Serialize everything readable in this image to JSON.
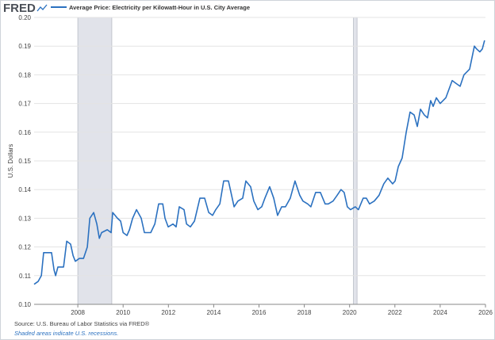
{
  "chart_data": {
    "type": "line",
    "logo": "FRED",
    "ylabel": "U.S. Dollars",
    "source": "Source: U.S. Bureau of Labor Statistics via FRED®",
    "note": "Shaded areas indicate U.S. recessions.",
    "xlim": [
      2006.07,
      2026
    ],
    "ylim": [
      0.1,
      0.2
    ],
    "xticks": [
      2008,
      2010,
      2012,
      2014,
      2016,
      2018,
      2020,
      2022,
      2024,
      2026
    ],
    "yticks": [
      {
        "value": 0.1,
        "label": "0.10"
      },
      0.11,
      0.12,
      0.13,
      0.14,
      0.15,
      0.16,
      0.17,
      0.18,
      0.19,
      {
        "value": 0.2,
        "label": "0.20"
      }
    ],
    "grid": true,
    "recessions": [
      [
        2008.0,
        2009.5
      ],
      [
        2020.17,
        2020.33
      ]
    ],
    "recession_color": "#e1e3ea",
    "series": [
      {
        "name": "Average Price: Electricity per Kilowatt-Hour in U.S. City Average",
        "color": "#2b71c0",
        "x": [
          2006.07,
          2006.25,
          2006.39,
          2006.49,
          2006.84,
          2006.95,
          2007.02,
          2007.12,
          2007.37,
          2007.51,
          2007.68,
          2007.79,
          2007.89,
          2008.07,
          2008.25,
          2008.42,
          2008.53,
          2008.7,
          2008.84,
          2008.95,
          2009.05,
          2009.3,
          2009.47,
          2009.54,
          2009.75,
          2009.89,
          2010.0,
          2010.17,
          2010.28,
          2010.42,
          2010.59,
          2010.8,
          2010.94,
          2011.22,
          2011.4,
          2011.57,
          2011.75,
          2011.85,
          2011.99,
          2012.2,
          2012.34,
          2012.48,
          2012.69,
          2012.8,
          2012.97,
          2013.15,
          2013.39,
          2013.6,
          2013.78,
          2013.95,
          2014.09,
          2014.27,
          2014.44,
          2014.65,
          2014.79,
          2014.9,
          2015.07,
          2015.28,
          2015.42,
          2015.63,
          2015.77,
          2015.95,
          2016.12,
          2016.26,
          2016.47,
          2016.65,
          2016.82,
          2017.0,
          2017.17,
          2017.38,
          2017.59,
          2017.8,
          2017.94,
          2018.15,
          2018.29,
          2018.5,
          2018.71,
          2018.92,
          2019.06,
          2019.27,
          2019.45,
          2019.62,
          2019.76,
          2019.9,
          2020.04,
          2020.25,
          2020.39,
          2020.6,
          2020.74,
          2020.88,
          2021.09,
          2021.3,
          2021.51,
          2021.69,
          2021.9,
          2022.01,
          2022.15,
          2022.32,
          2022.5,
          2022.67,
          2022.85,
          2022.99,
          2023.13,
          2023.3,
          2023.44,
          2023.58,
          2023.69,
          2023.83,
          2024.0,
          2024.25,
          2024.53,
          2024.7,
          2024.88,
          2025.05,
          2025.3,
          2025.51,
          2025.61,
          2025.75,
          2025.86,
          2025.96
        ],
        "values": [
          0.107,
          0.108,
          0.11,
          0.118,
          0.118,
          0.112,
          0.11,
          0.113,
          0.113,
          0.122,
          0.121,
          0.117,
          0.115,
          0.116,
          0.116,
          0.12,
          0.13,
          0.132,
          0.128,
          0.123,
          0.125,
          0.126,
          0.125,
          0.132,
          0.13,
          0.129,
          0.125,
          0.124,
          0.126,
          0.13,
          0.133,
          0.13,
          0.125,
          0.125,
          0.128,
          0.135,
          0.135,
          0.13,
          0.127,
          0.128,
          0.127,
          0.134,
          0.133,
          0.128,
          0.127,
          0.129,
          0.137,
          0.137,
          0.132,
          0.131,
          0.133,
          0.135,
          0.143,
          0.143,
          0.138,
          0.134,
          0.136,
          0.137,
          0.143,
          0.141,
          0.136,
          0.133,
          0.134,
          0.137,
          0.141,
          0.137,
          0.131,
          0.134,
          0.134,
          0.137,
          0.143,
          0.138,
          0.136,
          0.135,
          0.134,
          0.139,
          0.139,
          0.135,
          0.135,
          0.136,
          0.138,
          0.14,
          0.139,
          0.134,
          0.133,
          0.134,
          0.133,
          0.137,
          0.137,
          0.135,
          0.136,
          0.138,
          0.142,
          0.144,
          0.142,
          0.143,
          0.148,
          0.151,
          0.16,
          0.167,
          0.166,
          0.162,
          0.168,
          0.166,
          0.165,
          0.171,
          0.169,
          0.172,
          0.17,
          0.172,
          0.178,
          0.177,
          0.176,
          0.18,
          0.182,
          0.19,
          0.189,
          0.188,
          0.189,
          0.192
        ]
      }
    ]
  }
}
